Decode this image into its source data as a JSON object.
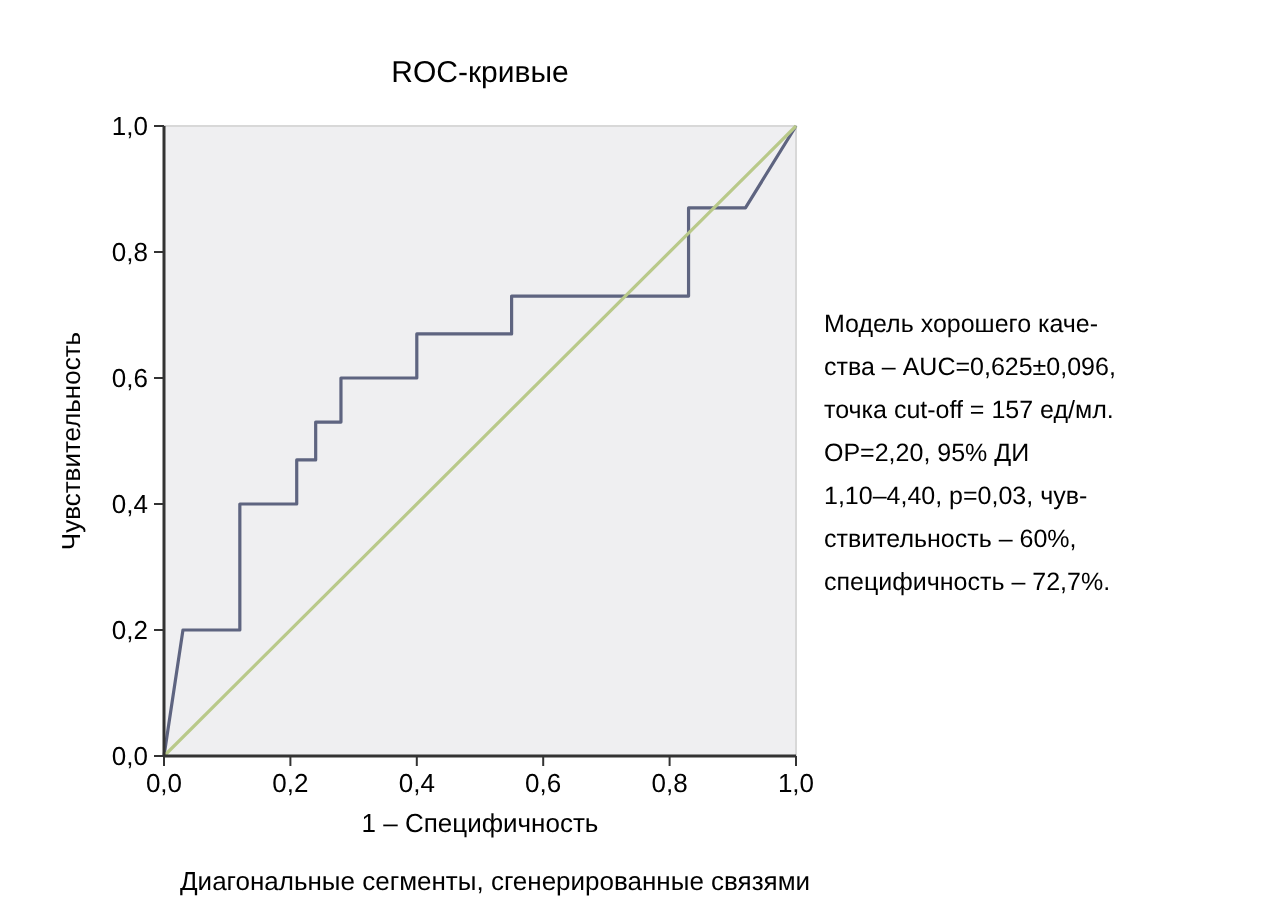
{
  "chart_data": {
    "type": "line",
    "title": "ROC-кривые",
    "xlabel": "1 – Специфичность",
    "ylabel": "Чувствительность",
    "xlim": [
      0,
      1
    ],
    "ylim": [
      0,
      1
    ],
    "xticks": [
      {
        "value": 0,
        "label": "0,0"
      },
      {
        "value": 0.2,
        "label": "0,2"
      },
      {
        "value": 0.4,
        "label": "0,4"
      },
      {
        "value": 0.6,
        "label": "0,6"
      },
      {
        "value": 0.8,
        "label": "0,8"
      },
      {
        "value": 1,
        "label": "1,0"
      }
    ],
    "yticks": [
      {
        "value": 0,
        "label": "0,0"
      },
      {
        "value": 0.2,
        "label": "0,2"
      },
      {
        "value": 0.4,
        "label": "0,4"
      },
      {
        "value": 0.6,
        "label": "0,6"
      },
      {
        "value": 0.8,
        "label": "0,8"
      },
      {
        "value": 1,
        "label": "1,0"
      }
    ],
    "series": [
      {
        "color": "#5e6480",
        "x": [
          0,
          0.03,
          0.12,
          0.12,
          0.21,
          0.21,
          0.24,
          0.24,
          0.28,
          0.28,
          0.4,
          0.4,
          0.55,
          0.55,
          0.83,
          0.83,
          0.92,
          1
        ],
        "values": [
          0,
          0.2,
          0.2,
          0.4,
          0.4,
          0.47,
          0.47,
          0.53,
          0.53,
          0.6,
          0.6,
          0.67,
          0.67,
          0.73,
          0.73,
          0.87,
          0.87,
          1
        ]
      },
      {
        "color": "#b9c98a",
        "x": [
          0,
          1
        ],
        "values": [
          0,
          1
        ]
      }
    ],
    "grid": false,
    "marker": "none",
    "line_style": "solid",
    "annotations": [
      "Модель хорошего каче-\nства – AUC=0,625±0,096,\nточка cut-off = 157 ед/мл.\nОР=2,20, 95% ДИ\n1,10–4,40, p=0,03, чув-\nствительность – 60%,\nспецифичность – 72,7%.",
      "Диагональные сегменты, сгенерированные связями"
    ]
  }
}
